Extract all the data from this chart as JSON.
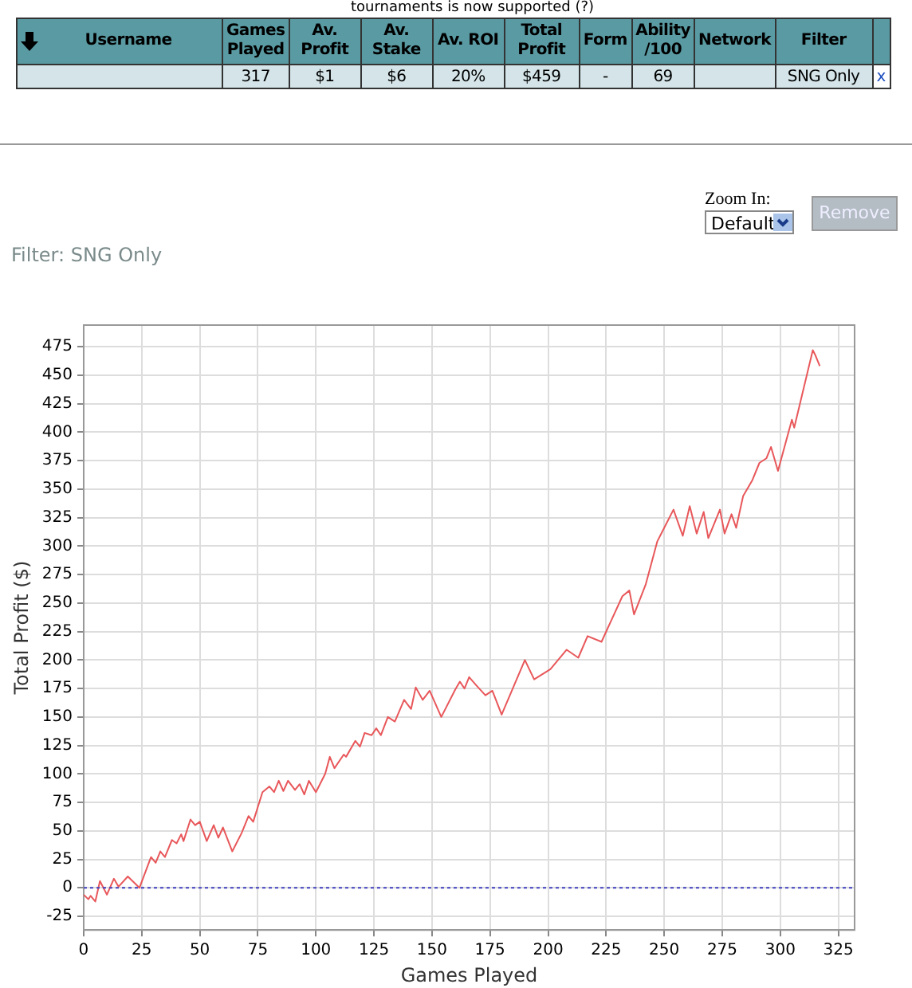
{
  "chart_data": {
    "type": "line",
    "subtitle": "Filter: SNG Only",
    "xlabel": "Games Played",
    "ylabel": "Total Profit ($)",
    "annotations": [
      "tournaments is now supported (?)",
      "Username",
      "Games Played",
      "Av. Profit",
      "Av. Stake",
      "Av. ROI",
      "Total Profit",
      "Form",
      "Ability /100",
      "Network",
      "Filter",
      "317",
      "$1",
      "$6",
      "20%",
      "$459",
      "-",
      "69",
      "SNG Only",
      "x",
      "Zoom In:",
      "Default",
      "Remove"
    ],
    "series": [
      {
        "color": "#e8575a",
        "x": [
          0,
          2,
          3,
          5,
          7,
          10,
          13,
          15,
          19,
          22,
          24,
          29,
          31,
          33,
          35,
          38,
          40,
          42,
          43,
          46,
          48,
          50,
          53,
          56,
          58,
          60,
          64,
          68,
          71,
          73,
          77,
          80,
          82,
          84,
          86,
          88,
          91,
          93,
          95,
          97,
          100,
          104,
          106,
          108,
          112,
          113,
          117,
          119,
          121,
          124,
          126,
          128,
          131,
          134,
          138,
          141,
          143,
          146,
          149,
          154,
          160,
          162,
          164,
          166,
          169,
          173,
          176,
          180,
          190,
          194,
          201,
          208,
          213,
          217,
          223,
          232,
          235,
          237,
          242,
          247,
          250,
          254,
          258,
          261,
          264,
          267,
          269,
          274,
          276,
          279,
          281,
          284,
          288,
          291,
          294,
          296,
          299,
          305,
          306,
          314,
          315,
          317
        ],
        "values": [
          -6,
          -10,
          -7,
          -12,
          6,
          -6,
          8,
          1,
          10,
          4,
          0,
          27,
          22,
          32,
          27,
          42,
          39,
          47,
          41,
          60,
          55,
          58,
          41,
          55,
          44,
          53,
          32,
          48,
          63,
          58,
          84,
          89,
          84,
          94,
          85,
          94,
          86,
          91,
          82,
          94,
          84,
          100,
          115,
          105,
          117,
          115,
          129,
          124,
          136,
          134,
          140,
          134,
          150,
          146,
          165,
          157,
          176,
          165,
          173,
          150,
          174,
          181,
          175,
          185,
          178,
          169,
          173,
          152,
          200,
          183,
          192,
          209,
          202,
          221,
          216,
          256,
          261,
          240,
          266,
          304,
          316,
          332,
          309,
          335,
          311,
          330,
          307,
          332,
          311,
          328,
          316,
          344,
          358,
          373,
          377,
          387,
          366,
          411,
          404,
          472,
          468,
          458
        ]
      }
    ],
    "xlim": [
      0,
      332
    ],
    "xticks": [
      0,
      25,
      50,
      75,
      100,
      125,
      150,
      175,
      200,
      225,
      250,
      275,
      300,
      325
    ],
    "ylim": [
      -37,
      494
    ],
    "yticks": [
      -25,
      0,
      25,
      50,
      75,
      100,
      125,
      150,
      175,
      200,
      225,
      250,
      275,
      300,
      325,
      350,
      375,
      400,
      425,
      450,
      475
    ],
    "grid": true,
    "legend": false,
    "marker": "none",
    "line_style": "solid",
    "ref_lines": [
      {
        "axis": "y",
        "value": 0,
        "color": "#4040c0",
        "line_style": "dotted"
      }
    ]
  }
}
